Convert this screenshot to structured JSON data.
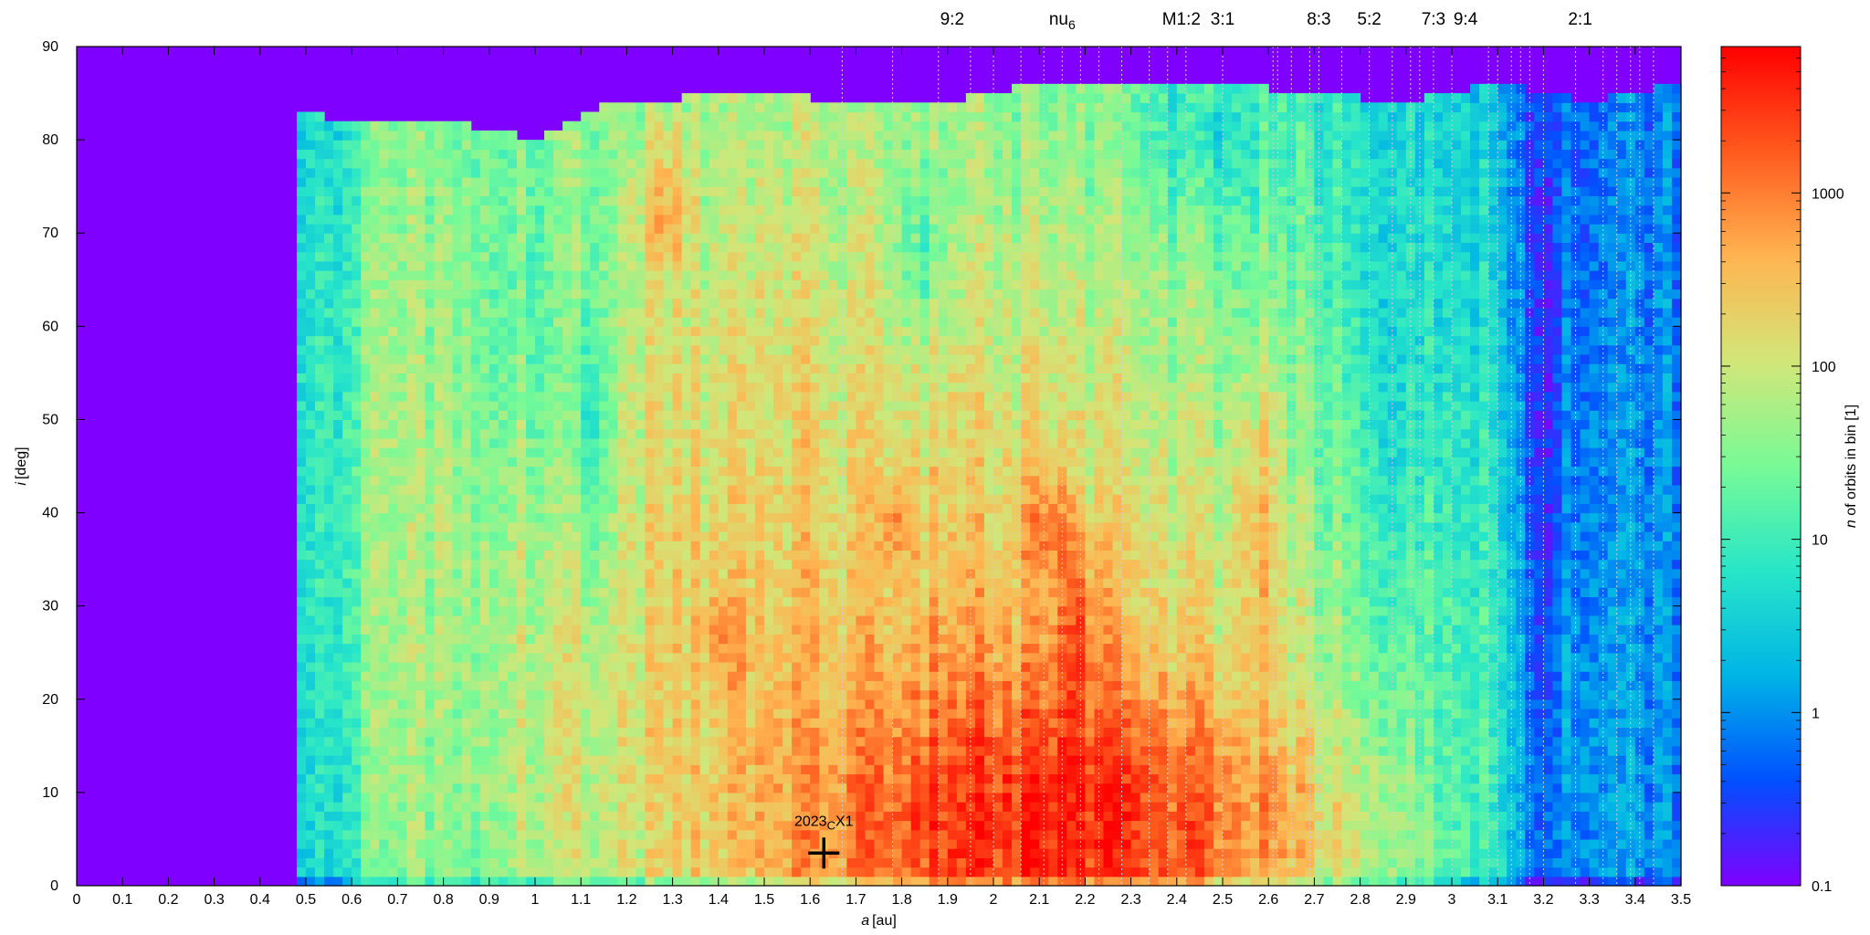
{
  "chart_data": {
    "type": "heatmap",
    "title": "",
    "xlabel": {
      "var": "a",
      "unit": "[au]"
    },
    "ylabel": {
      "var": "i",
      "unit": "[deg]"
    },
    "xlim": [
      0,
      3.5
    ],
    "ylim": [
      0,
      90
    ],
    "x_ticks": [
      "0",
      "0.1",
      "0.2",
      "0.3",
      "0.4",
      "0.5",
      "0.6",
      "0.7",
      "0.8",
      "0.9",
      "1",
      "1.1",
      "1.2",
      "1.3",
      "1.4",
      "1.5",
      "1.6",
      "1.7",
      "1.8",
      "1.9",
      "2",
      "2.1",
      "2.2",
      "2.3",
      "2.4",
      "2.5",
      "2.6",
      "2.7",
      "2.8",
      "2.9",
      "3",
      "3.1",
      "3.2",
      "3.3",
      "3.4",
      "3.5"
    ],
    "y_ticks": [
      "0",
      "10",
      "20",
      "30",
      "40",
      "50",
      "60",
      "70",
      "80",
      "90"
    ],
    "colorbar": {
      "label": {
        "var": "n",
        "text": " of orbits in bin [1]"
      },
      "scale": "log",
      "range": [
        0.1,
        7000
      ],
      "ticks": [
        "0.1",
        "1",
        "10",
        "100",
        "1000"
      ],
      "tick_values": [
        0.1,
        1,
        10,
        100,
        1000
      ],
      "colors": [
        "#7f00ff",
        "#0050ff",
        "#00b4e6",
        "#28e6c8",
        "#78fa96",
        "#d2e678",
        "#ffb450",
        "#ff5a1e",
        "#ff0000"
      ]
    },
    "resonances": [
      {
        "label": "9:2",
        "a": 1.91
      },
      {
        "label": "nu",
        "sub": "6",
        "a": 2.15
      },
      {
        "label": "M1:2",
        "a": 2.41
      },
      {
        "label": "3:1",
        "a": 2.5
      },
      {
        "label": "8:3",
        "a": 2.71
      },
      {
        "label": "5:2",
        "a": 2.82
      },
      {
        "label": "7:3",
        "a": 2.96
      },
      {
        "label": "9:4",
        "a": 3.03
      },
      {
        "label": "2:1",
        "a": 3.28
      }
    ],
    "resonance_lines_a": [
      1.67,
      1.78,
      1.88,
      1.95,
      2.0,
      2.06,
      2.11,
      2.15,
      2.19,
      2.23,
      2.28,
      2.34,
      2.38,
      2.42,
      2.5,
      2.61,
      2.62,
      2.65,
      2.69,
      2.71,
      2.76,
      2.82,
      2.87,
      2.91,
      2.93,
      2.96,
      3.0,
      3.08,
      3.1,
      3.13,
      3.15,
      3.17,
      3.2,
      3.27,
      3.33,
      3.36,
      3.39,
      3.41,
      3.44
    ],
    "annotation": {
      "label": "2023",
      "sub": "C",
      "suffix": "X1",
      "a": 1.63,
      "i": 3.5
    },
    "density_model": {
      "background": 0.1,
      "edges": [
        [
          0.48,
          83
        ],
        [
          0.6,
          82
        ],
        [
          0.8,
          82
        ],
        [
          1.0,
          80
        ],
        [
          1.15,
          84
        ],
        [
          1.5,
          85
        ],
        [
          1.7,
          84
        ],
        [
          1.9,
          84
        ],
        [
          2.1,
          86
        ],
        [
          2.3,
          86
        ],
        [
          2.5,
          86
        ],
        [
          2.7,
          85
        ],
        [
          2.9,
          84
        ],
        [
          3.1,
          86
        ],
        [
          3.3,
          84
        ],
        [
          3.48,
          86
        ]
      ],
      "peaks": [
        {
          "a": 2.13,
          "i": 6,
          "sa": 0.24,
          "si": 7,
          "n": 3000
        },
        {
          "a": 2.0,
          "i": 8,
          "sa": 0.25,
          "si": 12,
          "n": 700
        },
        {
          "a": 1.9,
          "i": 14,
          "sa": 0.45,
          "si": 22,
          "n": 220
        },
        {
          "a": 2.18,
          "i": 24,
          "sa": 0.03,
          "si": 6,
          "n": 1600
        },
        {
          "a": 2.12,
          "i": 38,
          "sa": 0.03,
          "si": 3,
          "n": 900
        },
        {
          "a": 1.79,
          "i": 39,
          "sa": 0.02,
          "si": 3,
          "n": 700
        },
        {
          "a": 1.41,
          "i": 26,
          "sa": 0.03,
          "si": 3,
          "n": 500
        },
        {
          "a": 1.28,
          "i": 73,
          "sa": 0.03,
          "si": 4,
          "n": 300
        },
        {
          "a": 2.57,
          "i": 35,
          "sa": 0.03,
          "si": 10,
          "n": 250
        },
        {
          "a": 1.6,
          "i": 42,
          "sa": 0.55,
          "si": 32,
          "n": 90
        },
        {
          "a": 1.2,
          "i": 50,
          "sa": 0.7,
          "si": 40,
          "n": 25
        }
      ],
      "valleys": [
        {
          "a": 1.0,
          "i": 60,
          "sa": 0.1,
          "si": 18,
          "f": 0.3
        },
        {
          "a": 1.12,
          "i": 48,
          "sa": 0.05,
          "si": 14,
          "f": 0.15
        },
        {
          "a": 1.85,
          "i": 68,
          "sa": 0.05,
          "si": 8,
          "f": 0.2
        },
        {
          "a": 2.45,
          "i": 80,
          "sa": 0.1,
          "si": 6,
          "f": 0.3
        },
        {
          "a": 2.87,
          "i": 50,
          "sa": 0.07,
          "si": 30,
          "f": 0.25
        },
        {
          "a": 3.2,
          "i": 40,
          "sa": 0.05,
          "si": 50,
          "f": 0.2
        }
      ]
    }
  }
}
